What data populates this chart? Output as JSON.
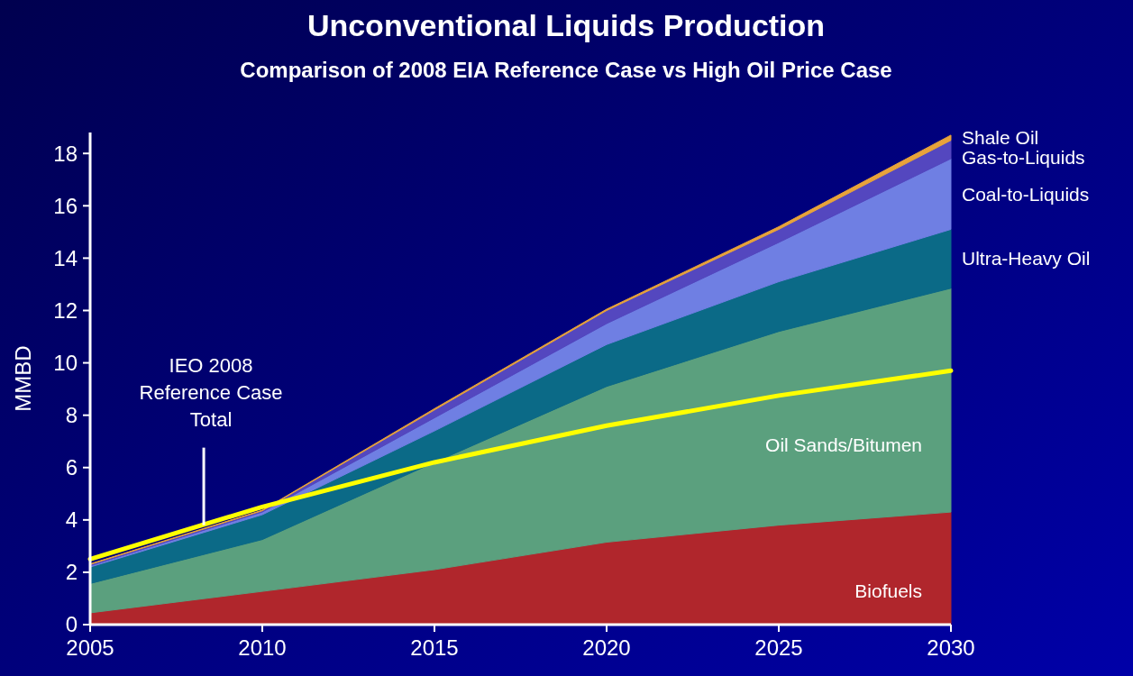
{
  "chart_data": {
    "type": "area",
    "title": "Unconventional Liquids Production",
    "subtitle": "Comparison of 2008 EIA Reference Case vs High Oil Price Case",
    "ylabel": "MMBD",
    "x": [
      2005,
      2010,
      2015,
      2020,
      2025,
      2030
    ],
    "xlim": [
      2005,
      2030
    ],
    "xticks": [
      2005,
      2010,
      2015,
      2020,
      2025,
      2030
    ],
    "ylim": [
      0,
      18.8
    ],
    "yticks": [
      0,
      2,
      4,
      6,
      8,
      10,
      12,
      14,
      16,
      18
    ],
    "stacked": true,
    "series": [
      {
        "name": "Biofuels",
        "color": "#b0262c",
        "values": [
          0.45,
          1.27,
          2.1,
          3.15,
          3.8,
          4.3
        ]
      },
      {
        "name": "Oil Sands/Bitumen",
        "color": "#5ba07e",
        "values": [
          1.12,
          1.98,
          4.1,
          5.95,
          7.4,
          8.55
        ]
      },
      {
        "name": "Ultra-Heavy Oil",
        "color": "#0b6a87",
        "values": [
          0.63,
          0.95,
          1.2,
          1.6,
          1.9,
          2.25
        ]
      },
      {
        "name": "Coal-to-Liquids",
        "color": "#6f7fe3",
        "values": [
          0.05,
          0.1,
          0.5,
          0.8,
          1.5,
          2.7
        ]
      },
      {
        "name": "Gas-to-Liquids",
        "color": "#5447bf",
        "values": [
          0.05,
          0.05,
          0.3,
          0.5,
          0.5,
          0.7
        ]
      },
      {
        "name": "Shale Oil",
        "color": "#e8a33a",
        "values": [
          0.02,
          0.02,
          0.05,
          0.05,
          0.1,
          0.2
        ]
      },
      {
        "type": "line",
        "color": "#ffff00",
        "values": [
          2.5,
          4.5,
          6.2,
          7.6,
          8.75,
          9.7
        ]
      }
    ],
    "annotations": [
      {
        "text": "IEO 2008\nReference Case\nTotal",
        "x": 2008.3,
        "y": 3.8
      }
    ]
  }
}
